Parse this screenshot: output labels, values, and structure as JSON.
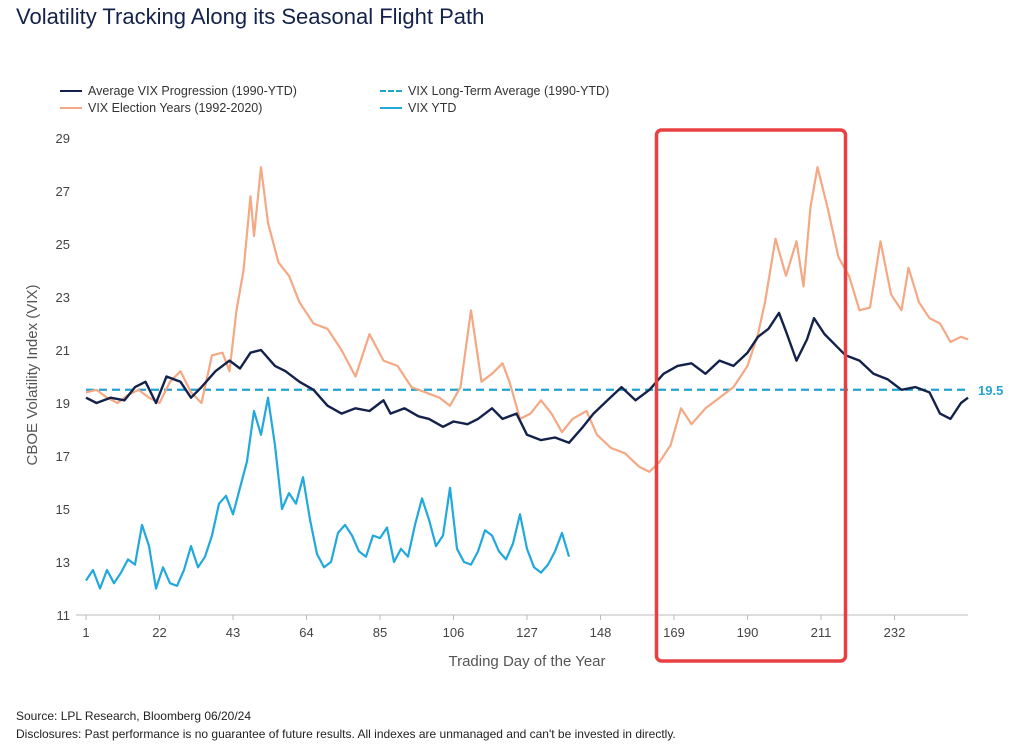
{
  "title": "Volatility Tracking Along its Seasonal Flight Path",
  "footer": {
    "source": "Source: LPL Research, Bloomberg 06/20/24",
    "disclosures": "Disclosures: Past performance is no guarantee of future results. All indexes are unmanaged and can't be invested in directly."
  },
  "chart_data": {
    "type": "line",
    "xlabel": "Trading Day of the Year",
    "ylabel": "CBOE Volatility Index (VIX)",
    "xlim": [
      1,
      253
    ],
    "ylim": [
      11,
      29
    ],
    "x_ticks": [
      1,
      22,
      43,
      64,
      85,
      106,
      127,
      148,
      169,
      190,
      211,
      232
    ],
    "y_ticks": [
      11,
      13,
      15,
      17,
      19,
      21,
      23,
      25,
      27,
      29
    ],
    "grid": false,
    "legend_position": "top-left",
    "reference_line": {
      "name": "VIX Long-Term Average (1990-YTD)",
      "value": 19.5,
      "label": "19.5",
      "color": "#23a4d0"
    },
    "highlight_box": {
      "x_range": [
        164,
        218
      ],
      "color": "#e84040"
    },
    "series": [
      {
        "name": "Average VIX Progression (1990-YTD)",
        "color": "#13224a",
        "points": [
          [
            1,
            19.2
          ],
          [
            4,
            19.0
          ],
          [
            8,
            19.2
          ],
          [
            12,
            19.1
          ],
          [
            15,
            19.6
          ],
          [
            18,
            19.8
          ],
          [
            21,
            19.0
          ],
          [
            24,
            20.0
          ],
          [
            28,
            19.8
          ],
          [
            31,
            19.2
          ],
          [
            34,
            19.6
          ],
          [
            38,
            20.2
          ],
          [
            42,
            20.6
          ],
          [
            45,
            20.3
          ],
          [
            48,
            20.9
          ],
          [
            51,
            21.0
          ],
          [
            55,
            20.4
          ],
          [
            58,
            20.2
          ],
          [
            62,
            19.8
          ],
          [
            66,
            19.5
          ],
          [
            70,
            18.9
          ],
          [
            74,
            18.6
          ],
          [
            78,
            18.8
          ],
          [
            82,
            18.7
          ],
          [
            86,
            19.1
          ],
          [
            88,
            18.6
          ],
          [
            92,
            18.8
          ],
          [
            96,
            18.5
          ],
          [
            99,
            18.4
          ],
          [
            103,
            18.1
          ],
          [
            106,
            18.3
          ],
          [
            110,
            18.2
          ],
          [
            113,
            18.4
          ],
          [
            117,
            18.8
          ],
          [
            120,
            18.4
          ],
          [
            124,
            18.6
          ],
          [
            127,
            17.8
          ],
          [
            131,
            17.6
          ],
          [
            135,
            17.7
          ],
          [
            139,
            17.5
          ],
          [
            143,
            18.1
          ],
          [
            146,
            18.6
          ],
          [
            150,
            19.1
          ],
          [
            154,
            19.6
          ],
          [
            158,
            19.1
          ],
          [
            162,
            19.5
          ],
          [
            166,
            20.1
          ],
          [
            170,
            20.4
          ],
          [
            174,
            20.5
          ],
          [
            178,
            20.1
          ],
          [
            182,
            20.6
          ],
          [
            186,
            20.4
          ],
          [
            190,
            20.9
          ],
          [
            193,
            21.5
          ],
          [
            196,
            21.8
          ],
          [
            199,
            22.4
          ],
          [
            201,
            21.7
          ],
          [
            204,
            20.6
          ],
          [
            207,
            21.4
          ],
          [
            209,
            22.2
          ],
          [
            212,
            21.6
          ],
          [
            215,
            21.2
          ],
          [
            218,
            20.8
          ],
          [
            222,
            20.6
          ],
          [
            226,
            20.1
          ],
          [
            230,
            19.9
          ],
          [
            234,
            19.5
          ],
          [
            238,
            19.6
          ],
          [
            242,
            19.4
          ],
          [
            245,
            18.6
          ],
          [
            248,
            18.4
          ],
          [
            251,
            19.0
          ],
          [
            253,
            19.2
          ]
        ]
      },
      {
        "name": "VIX Election Years (1992-2020)",
        "color": "#f4a884",
        "points": [
          [
            1,
            19.4
          ],
          [
            4,
            19.5
          ],
          [
            7,
            19.2
          ],
          [
            10,
            19.0
          ],
          [
            13,
            19.3
          ],
          [
            16,
            19.5
          ],
          [
            19,
            19.2
          ],
          [
            22,
            19.0
          ],
          [
            25,
            19.8
          ],
          [
            28,
            20.2
          ],
          [
            31,
            19.4
          ],
          [
            34,
            19.0
          ],
          [
            37,
            20.8
          ],
          [
            40,
            20.9
          ],
          [
            42,
            20.2
          ],
          [
            44,
            22.5
          ],
          [
            46,
            24.0
          ],
          [
            48,
            26.8
          ],
          [
            49,
            25.3
          ],
          [
            51,
            27.9
          ],
          [
            53,
            25.8
          ],
          [
            56,
            24.3
          ],
          [
            59,
            23.8
          ],
          [
            62,
            22.8
          ],
          [
            66,
            22.0
          ],
          [
            70,
            21.8
          ],
          [
            74,
            21.0
          ],
          [
            78,
            20.0
          ],
          [
            82,
            21.6
          ],
          [
            86,
            20.6
          ],
          [
            90,
            20.4
          ],
          [
            94,
            19.6
          ],
          [
            98,
            19.4
          ],
          [
            102,
            19.2
          ],
          [
            105,
            18.9
          ],
          [
            108,
            19.6
          ],
          [
            111,
            22.5
          ],
          [
            114,
            19.8
          ],
          [
            117,
            20.1
          ],
          [
            120,
            20.5
          ],
          [
            122,
            19.8
          ],
          [
            125,
            18.4
          ],
          [
            128,
            18.6
          ],
          [
            131,
            19.1
          ],
          [
            134,
            18.6
          ],
          [
            137,
            17.9
          ],
          [
            140,
            18.4
          ],
          [
            144,
            18.7
          ],
          [
            147,
            17.8
          ],
          [
            151,
            17.3
          ],
          [
            155,
            17.1
          ],
          [
            159,
            16.6
          ],
          [
            162,
            16.4
          ],
          [
            165,
            16.8
          ],
          [
            168,
            17.4
          ],
          [
            171,
            18.8
          ],
          [
            174,
            18.2
          ],
          [
            178,
            18.8
          ],
          [
            182,
            19.2
          ],
          [
            186,
            19.6
          ],
          [
            190,
            20.4
          ],
          [
            193,
            21.6
          ],
          [
            195,
            22.8
          ],
          [
            198,
            25.2
          ],
          [
            201,
            23.8
          ],
          [
            204,
            25.1
          ],
          [
            206,
            23.4
          ],
          [
            208,
            26.4
          ],
          [
            210,
            27.9
          ],
          [
            213,
            26.3
          ],
          [
            216,
            24.5
          ],
          [
            219,
            23.8
          ],
          [
            222,
            22.5
          ],
          [
            225,
            22.6
          ],
          [
            228,
            25.1
          ],
          [
            231,
            23.1
          ],
          [
            234,
            22.5
          ],
          [
            236,
            24.1
          ],
          [
            239,
            22.8
          ],
          [
            242,
            22.2
          ],
          [
            245,
            22.0
          ],
          [
            248,
            21.3
          ],
          [
            251,
            21.5
          ],
          [
            253,
            21.4
          ]
        ]
      },
      {
        "name": "VIX YTD",
        "color": "#21a8dc",
        "points": [
          [
            1,
            12.3
          ],
          [
            3,
            12.7
          ],
          [
            5,
            12.0
          ],
          [
            7,
            12.7
          ],
          [
            9,
            12.2
          ],
          [
            11,
            12.6
          ],
          [
            13,
            13.1
          ],
          [
            15,
            12.9
          ],
          [
            17,
            14.4
          ],
          [
            19,
            13.6
          ],
          [
            21,
            12.0
          ],
          [
            23,
            12.8
          ],
          [
            25,
            12.2
          ],
          [
            27,
            12.1
          ],
          [
            29,
            12.7
          ],
          [
            31,
            13.6
          ],
          [
            33,
            12.8
          ],
          [
            35,
            13.2
          ],
          [
            37,
            14.0
          ],
          [
            39,
            15.2
          ],
          [
            41,
            15.5
          ],
          [
            43,
            14.8
          ],
          [
            45,
            15.8
          ],
          [
            47,
            16.8
          ],
          [
            49,
            18.7
          ],
          [
            51,
            17.8
          ],
          [
            53,
            19.2
          ],
          [
            55,
            17.4
          ],
          [
            57,
            15.0
          ],
          [
            59,
            15.6
          ],
          [
            61,
            15.2
          ],
          [
            63,
            16.2
          ],
          [
            65,
            14.6
          ],
          [
            67,
            13.3
          ],
          [
            69,
            12.8
          ],
          [
            71,
            13.0
          ],
          [
            73,
            14.1
          ],
          [
            75,
            14.4
          ],
          [
            77,
            14.0
          ],
          [
            79,
            13.4
          ],
          [
            81,
            13.2
          ],
          [
            83,
            14.0
          ],
          [
            85,
            13.9
          ],
          [
            87,
            14.3
          ],
          [
            89,
            13.0
          ],
          [
            91,
            13.5
          ],
          [
            93,
            13.2
          ],
          [
            95,
            14.4
          ],
          [
            97,
            15.4
          ],
          [
            99,
            14.6
          ],
          [
            101,
            13.6
          ],
          [
            103,
            14.0
          ],
          [
            105,
            15.8
          ],
          [
            107,
            13.5
          ],
          [
            109,
            13.0
          ],
          [
            111,
            12.9
          ],
          [
            113,
            13.4
          ],
          [
            115,
            14.2
          ],
          [
            117,
            14.0
          ],
          [
            119,
            13.4
          ],
          [
            121,
            13.1
          ],
          [
            123,
            13.7
          ],
          [
            125,
            14.8
          ],
          [
            127,
            13.5
          ],
          [
            129,
            12.8
          ],
          [
            131,
            12.6
          ],
          [
            133,
            12.9
          ],
          [
            135,
            13.4
          ],
          [
            137,
            14.1
          ],
          [
            139,
            13.2
          ]
        ]
      }
    ]
  }
}
